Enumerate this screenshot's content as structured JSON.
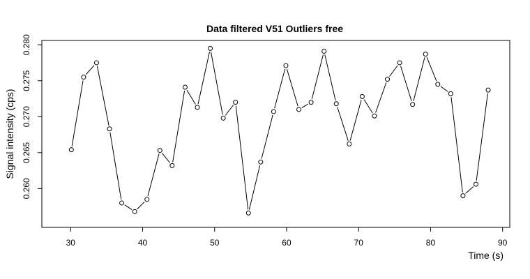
{
  "chart_data": {
    "type": "line",
    "title": "Data filtered V51 Outliers free",
    "xlabel": "Time (s)",
    "ylabel": "Signal intensity (cps)",
    "xlim": [
      26,
      91
    ],
    "ylim": [
      0.2546,
      0.2806
    ],
    "xticks": [
      30,
      40,
      50,
      60,
      70,
      80,
      90
    ],
    "yticks": [
      0.26,
      0.265,
      0.27,
      0.275,
      0.28
    ],
    "xtick_labels": [
      "30",
      "40",
      "50",
      "60",
      "70",
      "80",
      "90"
    ],
    "ytick_labels": [
      "0.260",
      "0.265",
      "0.270",
      "0.275",
      "0.280"
    ],
    "grid": false,
    "legend": "none",
    "marker": "open-circle",
    "series": [
      {
        "x": [
          30.1,
          31.8,
          33.6,
          35.4,
          37.1,
          38.9,
          40.6,
          42.4,
          44.1,
          45.9,
          47.6,
          49.4,
          51.2,
          52.9,
          54.7,
          56.4,
          58.2,
          59.9,
          61.7,
          63.4,
          65.2,
          66.9,
          68.7,
          70.5,
          72.2,
          74.0,
          75.7,
          77.5,
          79.3,
          81.0,
          82.8,
          84.5,
          86.3,
          88.0
        ],
        "values": [
          0.2654,
          0.2755,
          0.2775,
          0.2683,
          0.258,
          0.2568,
          0.2585,
          0.2653,
          0.2632,
          0.2741,
          0.2713,
          0.2795,
          0.2698,
          0.272,
          0.2566,
          0.2637,
          0.2707,
          0.2771,
          0.271,
          0.272,
          0.2791,
          0.2718,
          0.2662,
          0.2728,
          0.2701,
          0.2752,
          0.2775,
          0.2717,
          0.2787,
          0.2745,
          0.2732,
          0.259,
          0.2606,
          0.2737
        ]
      }
    ]
  }
}
